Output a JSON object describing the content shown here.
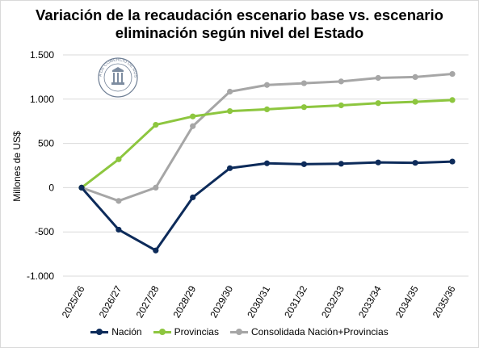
{
  "title_lines": [
    "Variación de la recaudación escenario base vs. escenario",
    "eliminación según nivel del Estado"
  ],
  "logo": {
    "text": "BOLSA DE COMERCIO DE ROSARIO"
  },
  "chart_data": {
    "type": "line",
    "title": "Variación de la recaudación escenario base vs. escenario eliminación según nivel del Estado",
    "xlabel": "",
    "ylabel": "Millones de US$",
    "categories": [
      "2025/26",
      "2026/27",
      "2027/28",
      "2028/29",
      "2029/30",
      "2030/31",
      "2031/32",
      "2032/33",
      "2033/34",
      "2034/35",
      "2035/36"
    ],
    "ylim": [
      -1000,
      1500
    ],
    "yticks": [
      -1000,
      -500,
      0,
      500,
      1000,
      1500
    ],
    "ytick_labels": [
      "-1.000",
      "-500",
      "0",
      "500",
      "1.000",
      "1.500"
    ],
    "grid": true,
    "legend_position": "bottom",
    "series": [
      {
        "name": "Nación",
        "color": "#0d2b5a",
        "values": [
          0,
          -475,
          -710,
          -110,
          220,
          275,
          265,
          270,
          285,
          280,
          295
        ]
      },
      {
        "name": "Provincias",
        "color": "#8dc63f",
        "values": [
          0,
          320,
          710,
          805,
          865,
          885,
          910,
          930,
          955,
          970,
          990
        ]
      },
      {
        "name": "Consolidada Nación+Provincias",
        "color": "#a6a6a6",
        "values": [
          0,
          -150,
          0,
          695,
          1085,
          1160,
          1180,
          1200,
          1240,
          1250,
          1285
        ]
      }
    ]
  }
}
